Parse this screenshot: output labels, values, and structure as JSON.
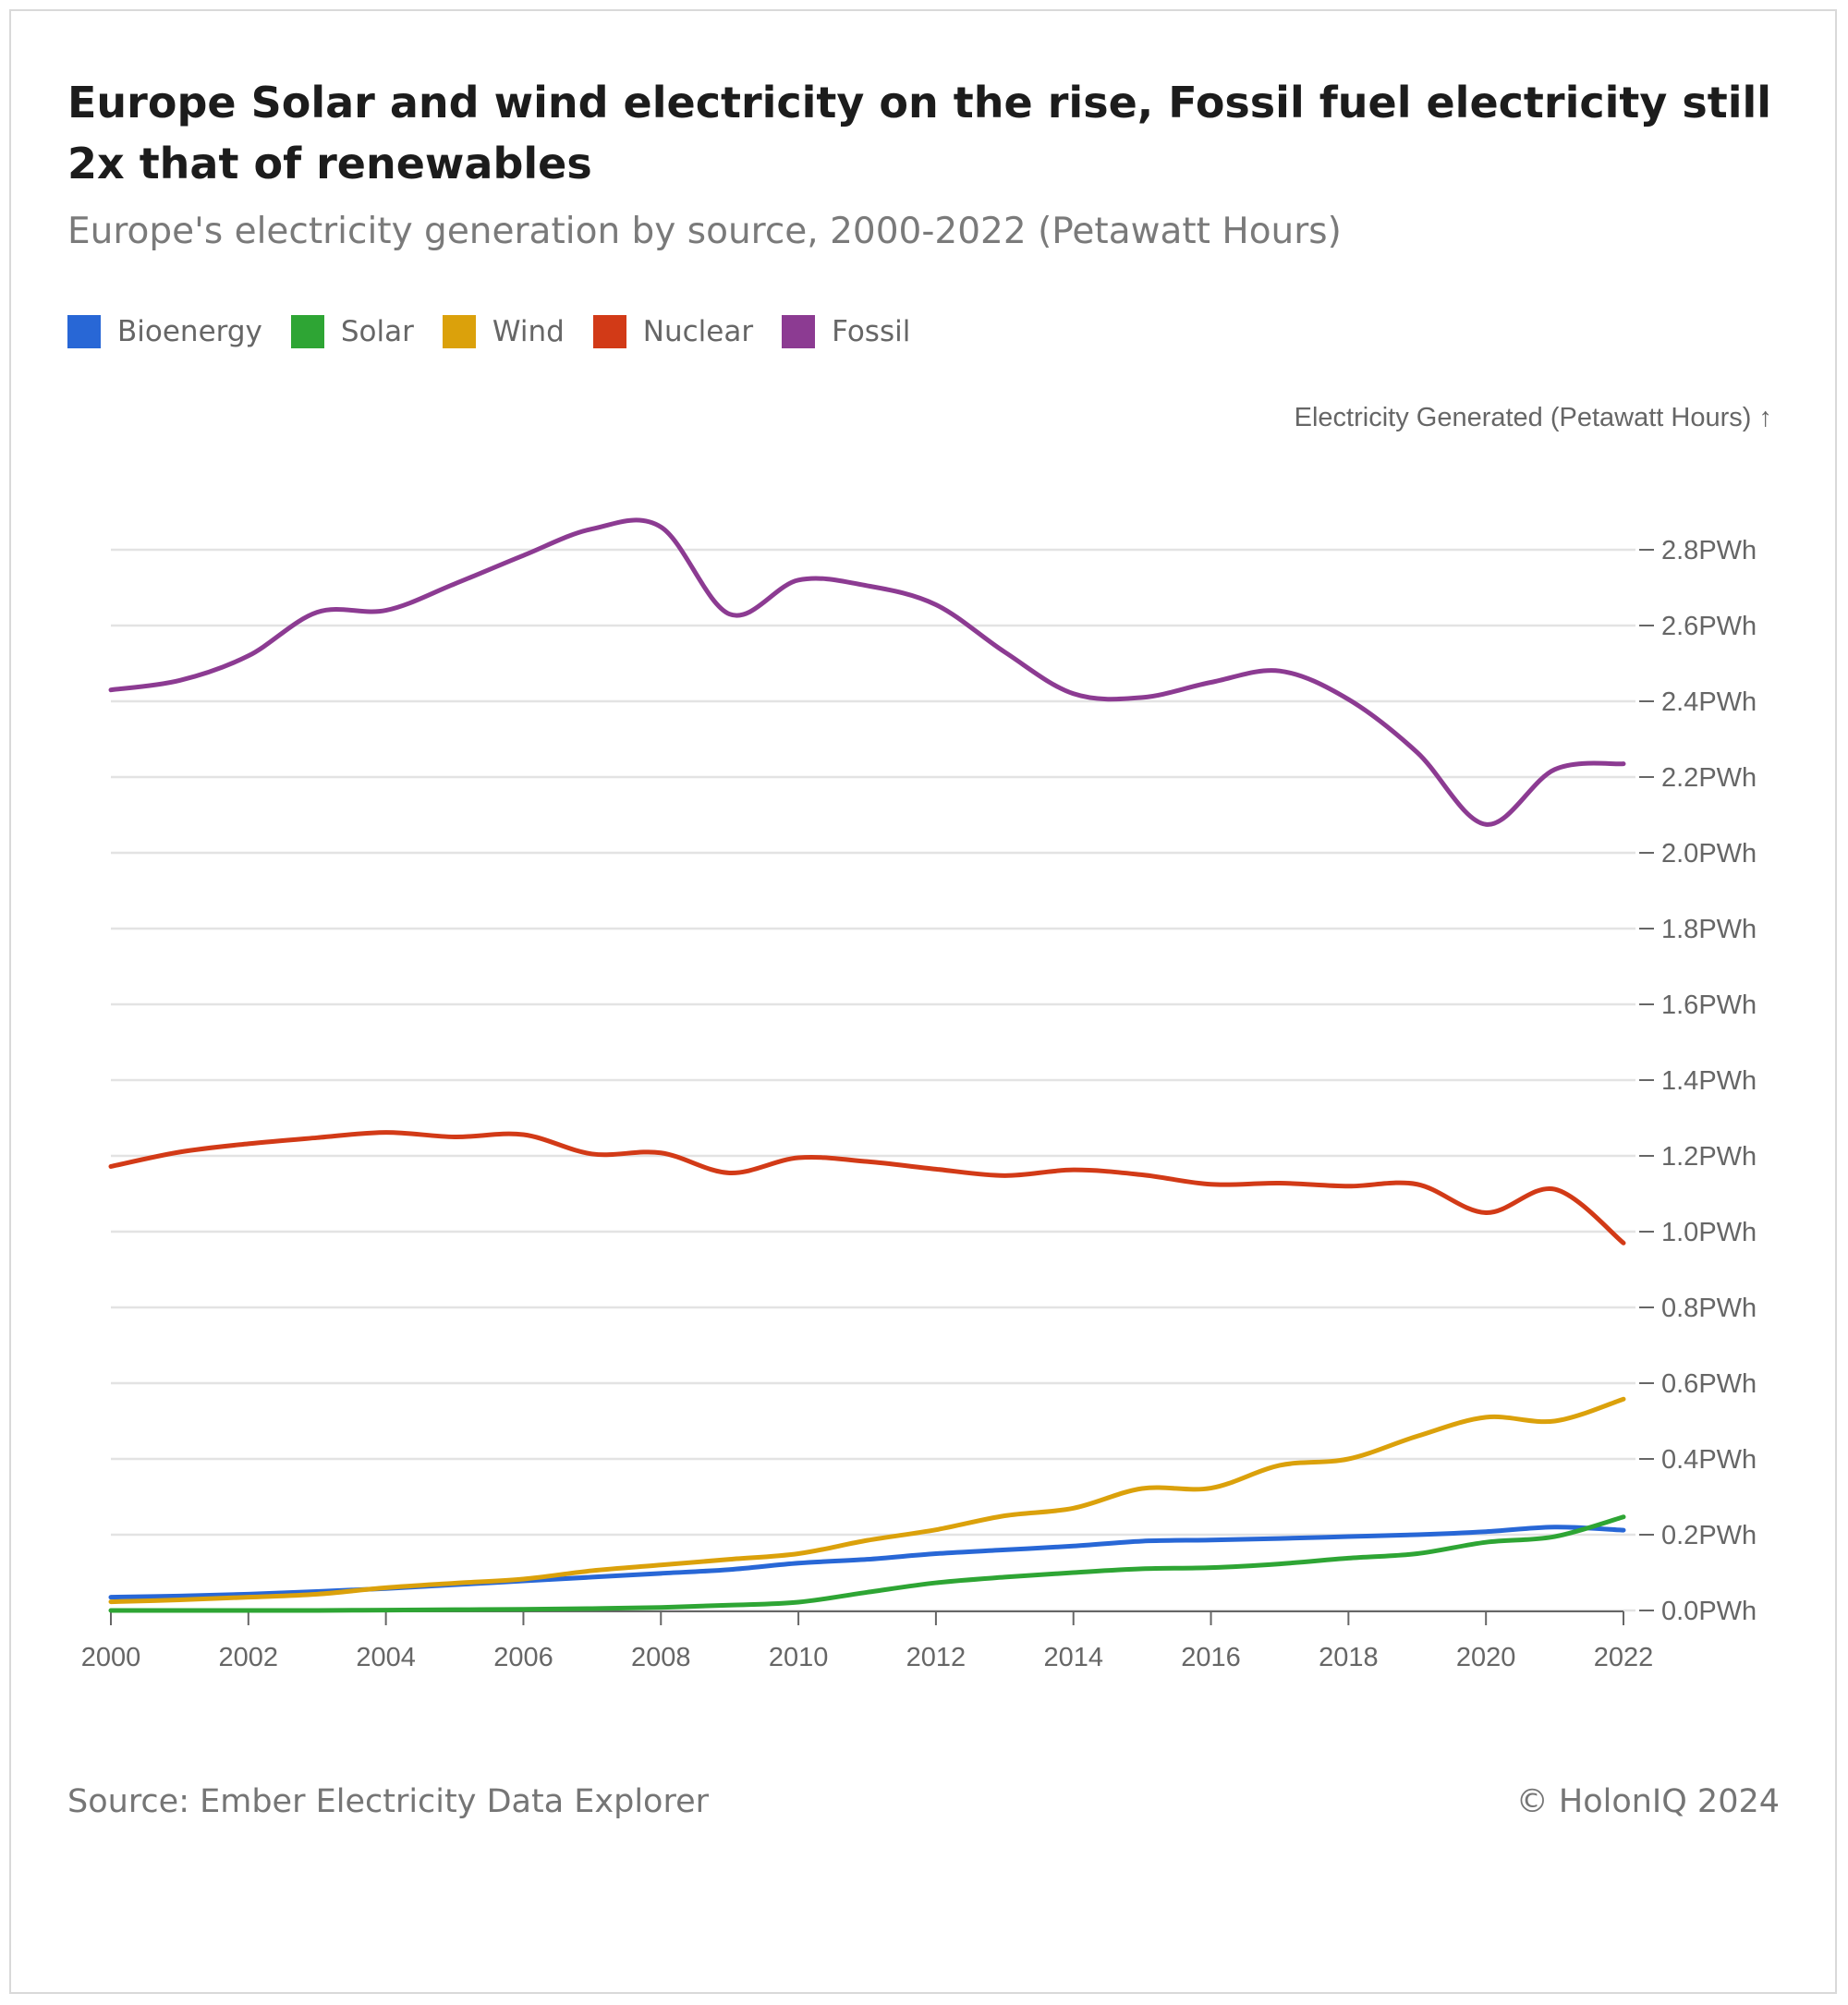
{
  "title": "Europe Solar and wind electricity on the rise, Fossil fuel electricity still 2x that of renewables",
  "subtitle": "Europe's electricity generation by source, 2000-2022 (Petawatt Hours)",
  "source": "Source: Ember Electricity Data Explorer",
  "copyright": "© HolonIQ 2024",
  "chart_data": {
    "type": "line",
    "ylabel": "Electricity Generated (Petawatt Hours) ↑",
    "xlabel": "",
    "x": [
      2000,
      2001,
      2002,
      2003,
      2004,
      2005,
      2006,
      2007,
      2008,
      2009,
      2010,
      2011,
      2012,
      2013,
      2014,
      2015,
      2016,
      2017,
      2018,
      2019,
      2020,
      2021,
      2022
    ],
    "xticks": [
      "2000",
      "2002",
      "2004",
      "2006",
      "2008",
      "2010",
      "2012",
      "2014",
      "2016",
      "2018",
      "2020",
      "2022"
    ],
    "yticks": [
      "0.0PWh",
      "0.2PWh",
      "0.4PWh",
      "0.6PWh",
      "0.8PWh",
      "1.0PWh",
      "1.2PWh",
      "1.4PWh",
      "1.6PWh",
      "1.8PWh",
      "2.0PWh",
      "2.2PWh",
      "2.4PWh",
      "2.6PWh",
      "2.8PWh"
    ],
    "ylim": [
      0,
      2.8
    ],
    "xlim": [
      2000,
      2022
    ],
    "grid": true,
    "legend_position": "top-left",
    "series": [
      {
        "name": "Bioenergy",
        "color": "#2867d6",
        "values": [
          0.035,
          0.038,
          0.043,
          0.05,
          0.058,
          0.068,
          0.078,
          0.088,
          0.098,
          0.108,
          0.125,
          0.135,
          0.15,
          0.16,
          0.17,
          0.183,
          0.186,
          0.19,
          0.195,
          0.2,
          0.208,
          0.22,
          0.212
        ]
      },
      {
        "name": "Solar",
        "color": "#2ea534",
        "values": [
          0.0,
          0.0,
          0.0,
          0.0,
          0.001,
          0.002,
          0.003,
          0.005,
          0.008,
          0.014,
          0.022,
          0.048,
          0.073,
          0.088,
          0.1,
          0.11,
          0.113,
          0.123,
          0.138,
          0.15,
          0.18,
          0.195,
          0.247
        ]
      },
      {
        "name": "Wind",
        "color": "#dba10b",
        "values": [
          0.023,
          0.028,
          0.035,
          0.043,
          0.06,
          0.072,
          0.083,
          0.105,
          0.12,
          0.135,
          0.15,
          0.185,
          0.213,
          0.25,
          0.27,
          0.322,
          0.323,
          0.383,
          0.4,
          0.46,
          0.51,
          0.5,
          0.558
        ]
      },
      {
        "name": "Nuclear",
        "color": "#d23a17",
        "values": [
          1.172,
          1.21,
          1.232,
          1.248,
          1.262,
          1.25,
          1.256,
          1.205,
          1.208,
          1.155,
          1.195,
          1.185,
          1.165,
          1.148,
          1.163,
          1.15,
          1.125,
          1.128,
          1.12,
          1.125,
          1.05,
          1.112,
          0.97
        ]
      },
      {
        "name": "Fossil",
        "color": "#8c3b92",
        "values": [
          2.43,
          2.455,
          2.52,
          2.635,
          2.64,
          2.71,
          2.785,
          2.855,
          2.86,
          2.63,
          2.72,
          2.705,
          2.655,
          2.53,
          2.42,
          2.41,
          2.45,
          2.48,
          2.405,
          2.265,
          2.075,
          2.22,
          2.235
        ]
      }
    ]
  }
}
